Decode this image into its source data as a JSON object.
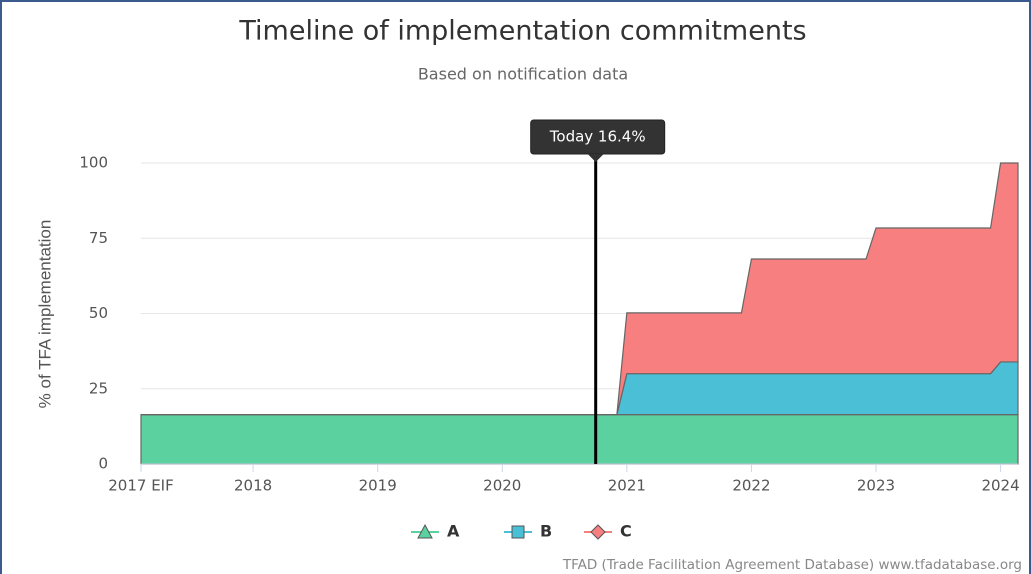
{
  "chart_data": {
    "type": "stacked-area",
    "title": "Timeline of implementation commitments",
    "subtitle": "Based on notification data",
    "y_label": "% of TFA implementation",
    "x": [
      2017.1,
      2020.92,
      2021.0,
      2021.92,
      2022.0,
      2022.92,
      2023.0,
      2023.92,
      2024.0,
      2024.14
    ],
    "series": [
      {
        "name": "A",
        "color": "#5cd1a0",
        "marker": "triangle",
        "values": [
          16.4,
          16.4,
          16.4,
          16.4,
          16.4,
          16.4,
          16.4,
          16.4,
          16.4,
          16.4
        ]
      },
      {
        "name": "B",
        "color": "#4bbfd6",
        "marker": "square",
        "values": [
          0,
          0,
          13.6,
          13.6,
          13.6,
          13.6,
          13.6,
          13.6,
          17.5,
          17.5
        ]
      },
      {
        "name": "C",
        "color": "#f77f7f",
        "marker": "diamond",
        "values": [
          0,
          0,
          20.2,
          20.2,
          38.1,
          38.1,
          48.4,
          48.4,
          66.1,
          66.1
        ]
      }
    ],
    "xlim": [
      2017.1,
      2024.14
    ],
    "xticks": [
      {
        "value": 2017.1,
        "label": "2017 EIF"
      },
      2018,
      2019,
      2020,
      2021,
      2022,
      2023,
      2024
    ],
    "ylim": [
      0,
      100
    ],
    "yticks": [
      0,
      25,
      50,
      75,
      100
    ],
    "grid": true,
    "annotation": {
      "x": 2020.75,
      "label": "Today 16.4%"
    },
    "credit": "TFAD (Trade Facilitation Agreement Database) www.tfadatabase.org"
  }
}
